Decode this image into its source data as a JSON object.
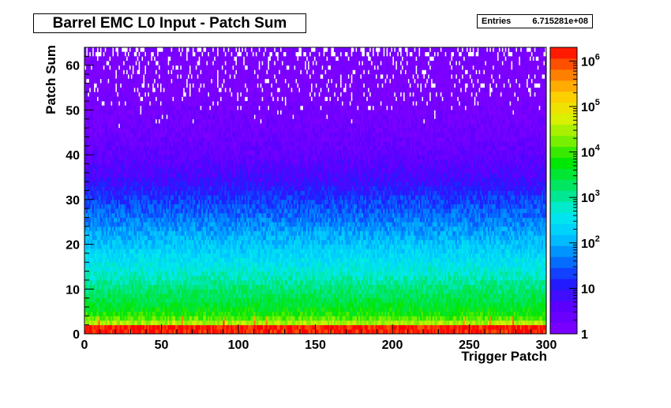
{
  "title": "Barrel EMC L0 Input - Patch Sum",
  "stats": {
    "label": "Entries",
    "value": "6.715281e+08"
  },
  "chart_data": {
    "type": "heatmap",
    "title": "Barrel EMC L0 Input - Patch Sum",
    "xlabel": "Trigger Patch",
    "ylabel": "Patch Sum",
    "xlim": [
      0,
      300
    ],
    "ylim": [
      0,
      64
    ],
    "x_ticks": [
      "0",
      "50",
      "100",
      "150",
      "200",
      "250",
      "300"
    ],
    "y_ticks": [
      "0",
      "10",
      "20",
      "30",
      "40",
      "50",
      "60"
    ],
    "z_scale": "log",
    "zlim": [
      1,
      2000000
    ],
    "z_ticks": [
      "1",
      "10",
      "10",
      "10",
      "10",
      "10",
      "10"
    ],
    "z_tick_exponents": [
      "",
      "",
      "2",
      "3",
      "4",
      "5",
      "6"
    ],
    "entries": 671528100,
    "profile_by_patch_sum": [
      {
        "y": 1.5,
        "counts": 1500000
      },
      {
        "y": 2.5,
        "counts": 30000
      },
      {
        "y": 4,
        "counts": 8000
      },
      {
        "y": 7,
        "counts": 3000
      },
      {
        "y": 10,
        "counts": 1500
      },
      {
        "y": 15,
        "counts": 400
      },
      {
        "y": 20,
        "counts": 150
      },
      {
        "y": 25,
        "counts": 50
      },
      {
        "y": 30,
        "counts": 20
      },
      {
        "y": 35,
        "counts": 6
      },
      {
        "y": 40,
        "counts": 3
      },
      {
        "y": 45,
        "counts": 2
      },
      {
        "y": 55,
        "counts": 1
      },
      {
        "y": 62.5,
        "counts": 1
      }
    ],
    "hot_patches": [
      9,
      63,
      90,
      110,
      118,
      246,
      263,
      278
    ],
    "grid": false
  }
}
